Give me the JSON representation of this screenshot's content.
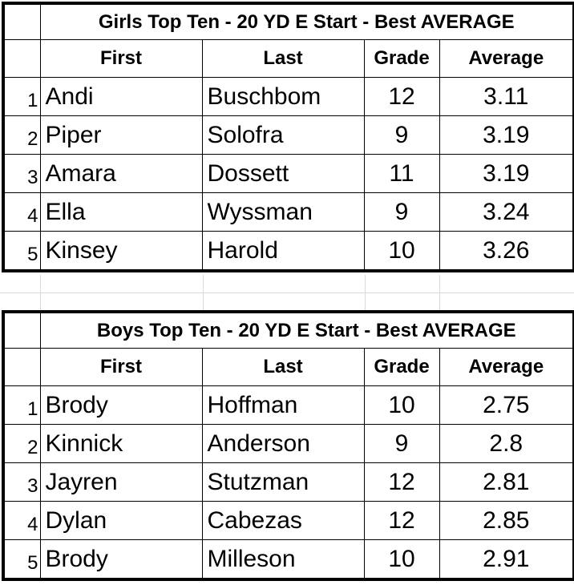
{
  "tables": [
    {
      "title": "Girls Top Ten - 20 YD E Start - Best AVERAGE",
      "headers": {
        "first": "First",
        "last": "Last",
        "grade": "Grade",
        "average": "Average"
      },
      "rows": [
        {
          "rank": "1",
          "first": "Andi",
          "last": "Buschbom",
          "grade": "12",
          "average": "3.11"
        },
        {
          "rank": "2",
          "first": "Piper",
          "last": "Solofra",
          "grade": "9",
          "average": "3.19"
        },
        {
          "rank": "3",
          "first": "Amara",
          "last": "Dossett",
          "grade": "11",
          "average": "3.19"
        },
        {
          "rank": "4",
          "first": "Ella",
          "last": "Wyssman",
          "grade": "9",
          "average": "3.24"
        },
        {
          "rank": "5",
          "first": "Kinsey",
          "last": "Harold",
          "grade": "10",
          "average": "3.26"
        }
      ]
    },
    {
      "title": "Boys Top Ten - 20 YD E Start - Best AVERAGE",
      "headers": {
        "first": "First",
        "last": "Last",
        "grade": "Grade",
        "average": "Average"
      },
      "rows": [
        {
          "rank": "1",
          "first": "Brody",
          "last": "Hoffman",
          "grade": "10",
          "average": "2.75"
        },
        {
          "rank": "2",
          "first": "Kinnick",
          "last": "Anderson",
          "grade": "9",
          "average": "2.8"
        },
        {
          "rank": "3",
          "first": "Jayren",
          "last": "Stutzman",
          "grade": "12",
          "average": "2.81"
        },
        {
          "rank": "4",
          "first": "Dylan",
          "last": "Cabezas",
          "grade": "12",
          "average": "2.85"
        },
        {
          "rank": "5",
          "first": "Brody",
          "last": "Milleson",
          "grade": "10",
          "average": "2.91"
        }
      ]
    }
  ]
}
